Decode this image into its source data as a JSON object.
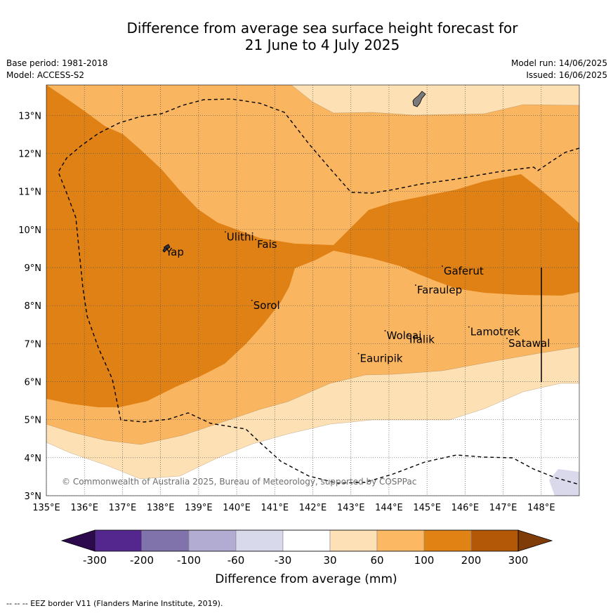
{
  "title": {
    "line1": "Difference from average sea surface height forecast for",
    "line2": "21 June to 4 July 2025"
  },
  "meta": {
    "base_period": "Base period: 1981-2018",
    "model": "Model: ACCESS-S2",
    "model_run": "Model run: 14/06/2025",
    "issued": "Issued: 16/06/2025"
  },
  "map": {
    "lon_range": [
      135,
      149
    ],
    "lat_range": [
      3,
      13.8
    ],
    "lon_ticks": [
      "135°E",
      "136°E",
      "137°E",
      "138°E",
      "139°E",
      "140°E",
      "141°E",
      "142°E",
      "143°E",
      "144°E",
      "145°E",
      "146°E",
      "147°E",
      "148°E"
    ],
    "lat_ticks": [
      "3°N",
      "4°N",
      "5°N",
      "6°N",
      "7°N",
      "8°N",
      "9°N",
      "10°N",
      "11°N",
      "12°N",
      "13°N"
    ],
    "places": [
      {
        "name": "Yap",
        "lon": 138.1,
        "lat": 9.5
      },
      {
        "name": "Ulithi",
        "lon": 139.7,
        "lat": 9.9
      },
      {
        "name": "Fais",
        "lon": 140.5,
        "lat": 9.7
      },
      {
        "name": "Gaferut",
        "lon": 145.4,
        "lat": 9.0
      },
      {
        "name": "Faraulep",
        "lon": 144.7,
        "lat": 8.5
      },
      {
        "name": "Sorol",
        "lon": 140.4,
        "lat": 8.1
      },
      {
        "name": "Lamotrek",
        "lon": 146.1,
        "lat": 7.4
      },
      {
        "name": "Woleai",
        "lon": 143.9,
        "lat": 7.3
      },
      {
        "name": "Ifalik",
        "lon": 144.5,
        "lat": 7.2
      },
      {
        "name": "Satawal",
        "lon": 147.1,
        "lat": 7.1
      },
      {
        "name": "Eauripik",
        "lon": 143.2,
        "lat": 6.7
      }
    ],
    "copyright": "© Commonwealth of Australia 2025, Bureau of Meteorology, supported by COSPPac",
    "colors": {
      "band_30_60": "#fde0b4",
      "band_60_100": "#fab561",
      "band_100_200": "#e08115",
      "band_neg": "#d9d9eb"
    }
  },
  "colorbar": {
    "label": "Difference from average (mm)",
    "ticks": [
      "-300",
      "-200",
      "-100",
      "-60",
      "-30",
      "30",
      "60",
      "100",
      "200",
      "300"
    ],
    "colors": [
      "#2d0a4e",
      "#54278f",
      "#8073ac",
      "#b2abd2",
      "#d8daeb",
      "#ffffff",
      "#fee0b6",
      "#fdb863",
      "#e08214",
      "#b35806",
      "#7f3b08"
    ]
  },
  "footer": "--  --  -- EEZ border V11 (Flanders Marine Institute, 2019)."
}
